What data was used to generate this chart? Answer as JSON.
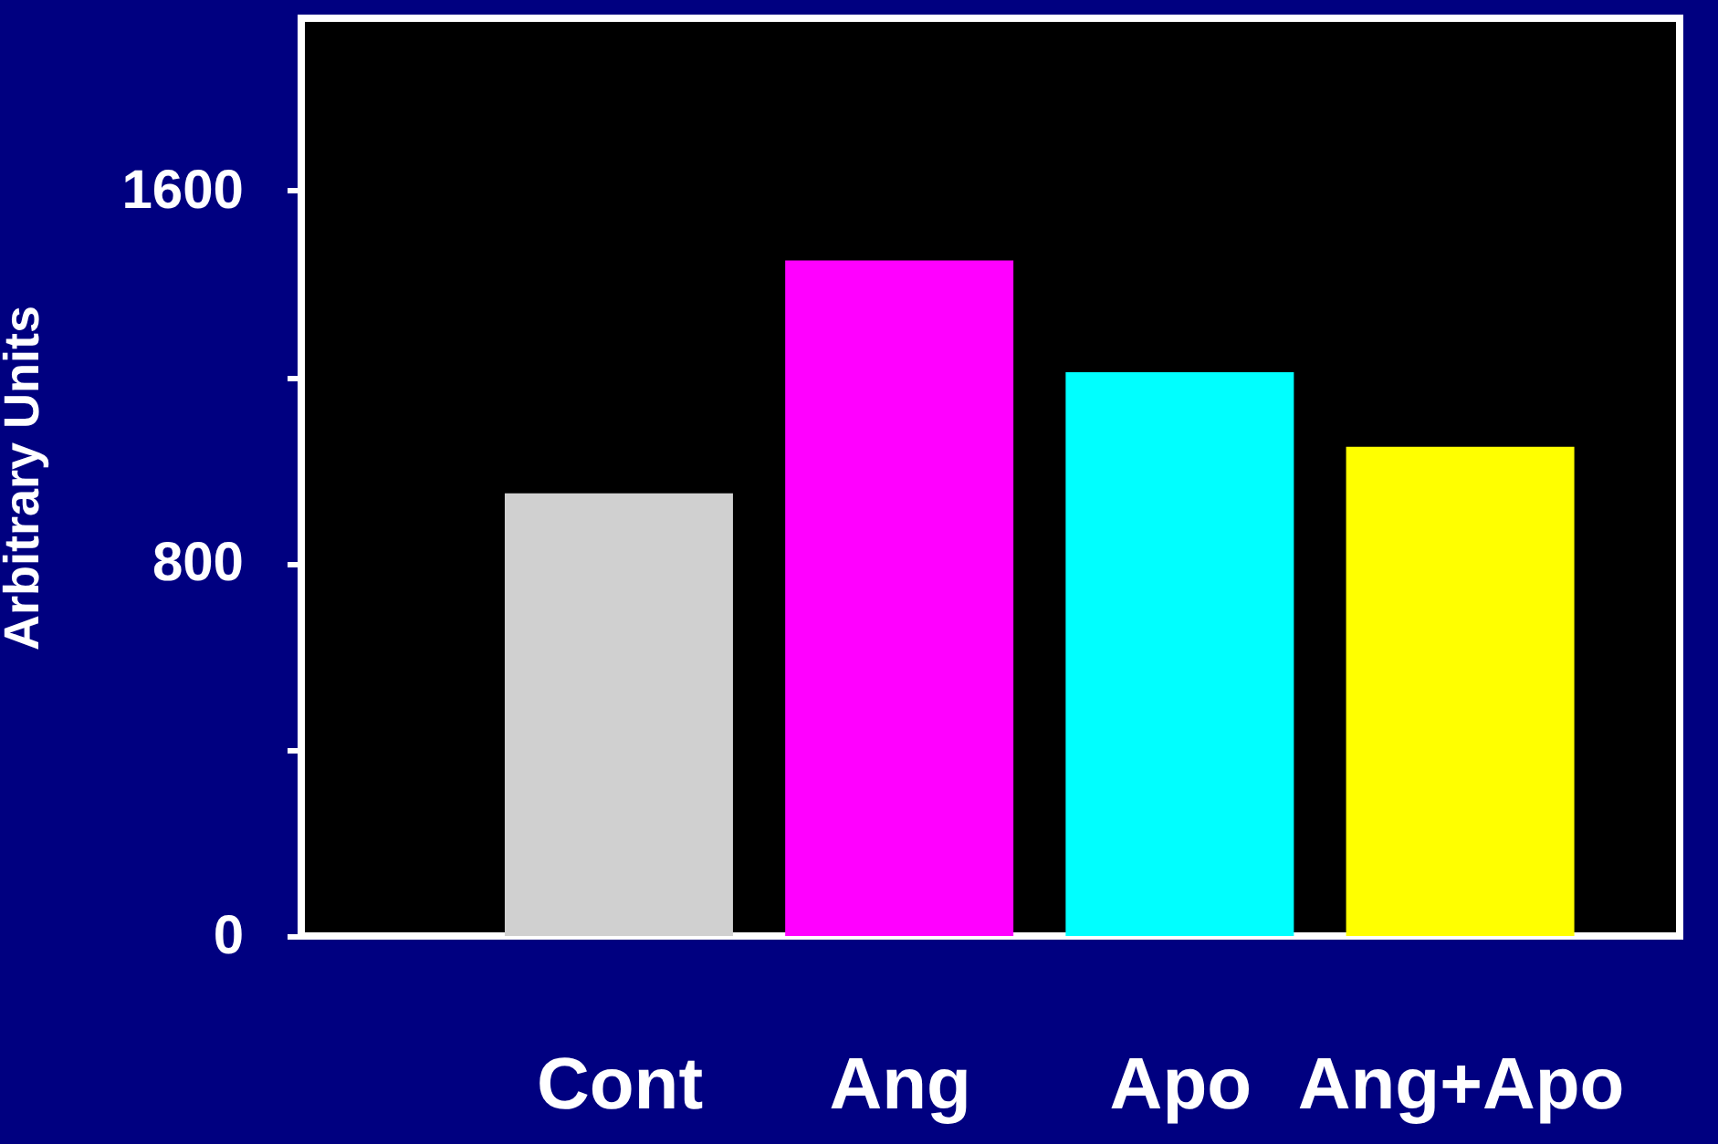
{
  "chart_data": {
    "type": "bar",
    "ylabel": "Arbitrary Units",
    "categories": [
      "Cont",
      "Ang",
      "Apo",
      "Ang+Apo"
    ],
    "values": [
      950,
      1450,
      1210,
      1050
    ],
    "colors": [
      "#d0d0d0",
      "#ff00ff",
      "#00ffff",
      "#ffff00"
    ],
    "ylim": [
      0,
      1970
    ],
    "yticks": [
      0,
      {
        "value": 400,
        "label": null
      },
      800,
      {
        "value": 1200,
        "label": null
      },
      1600
    ],
    "grid": false
  }
}
